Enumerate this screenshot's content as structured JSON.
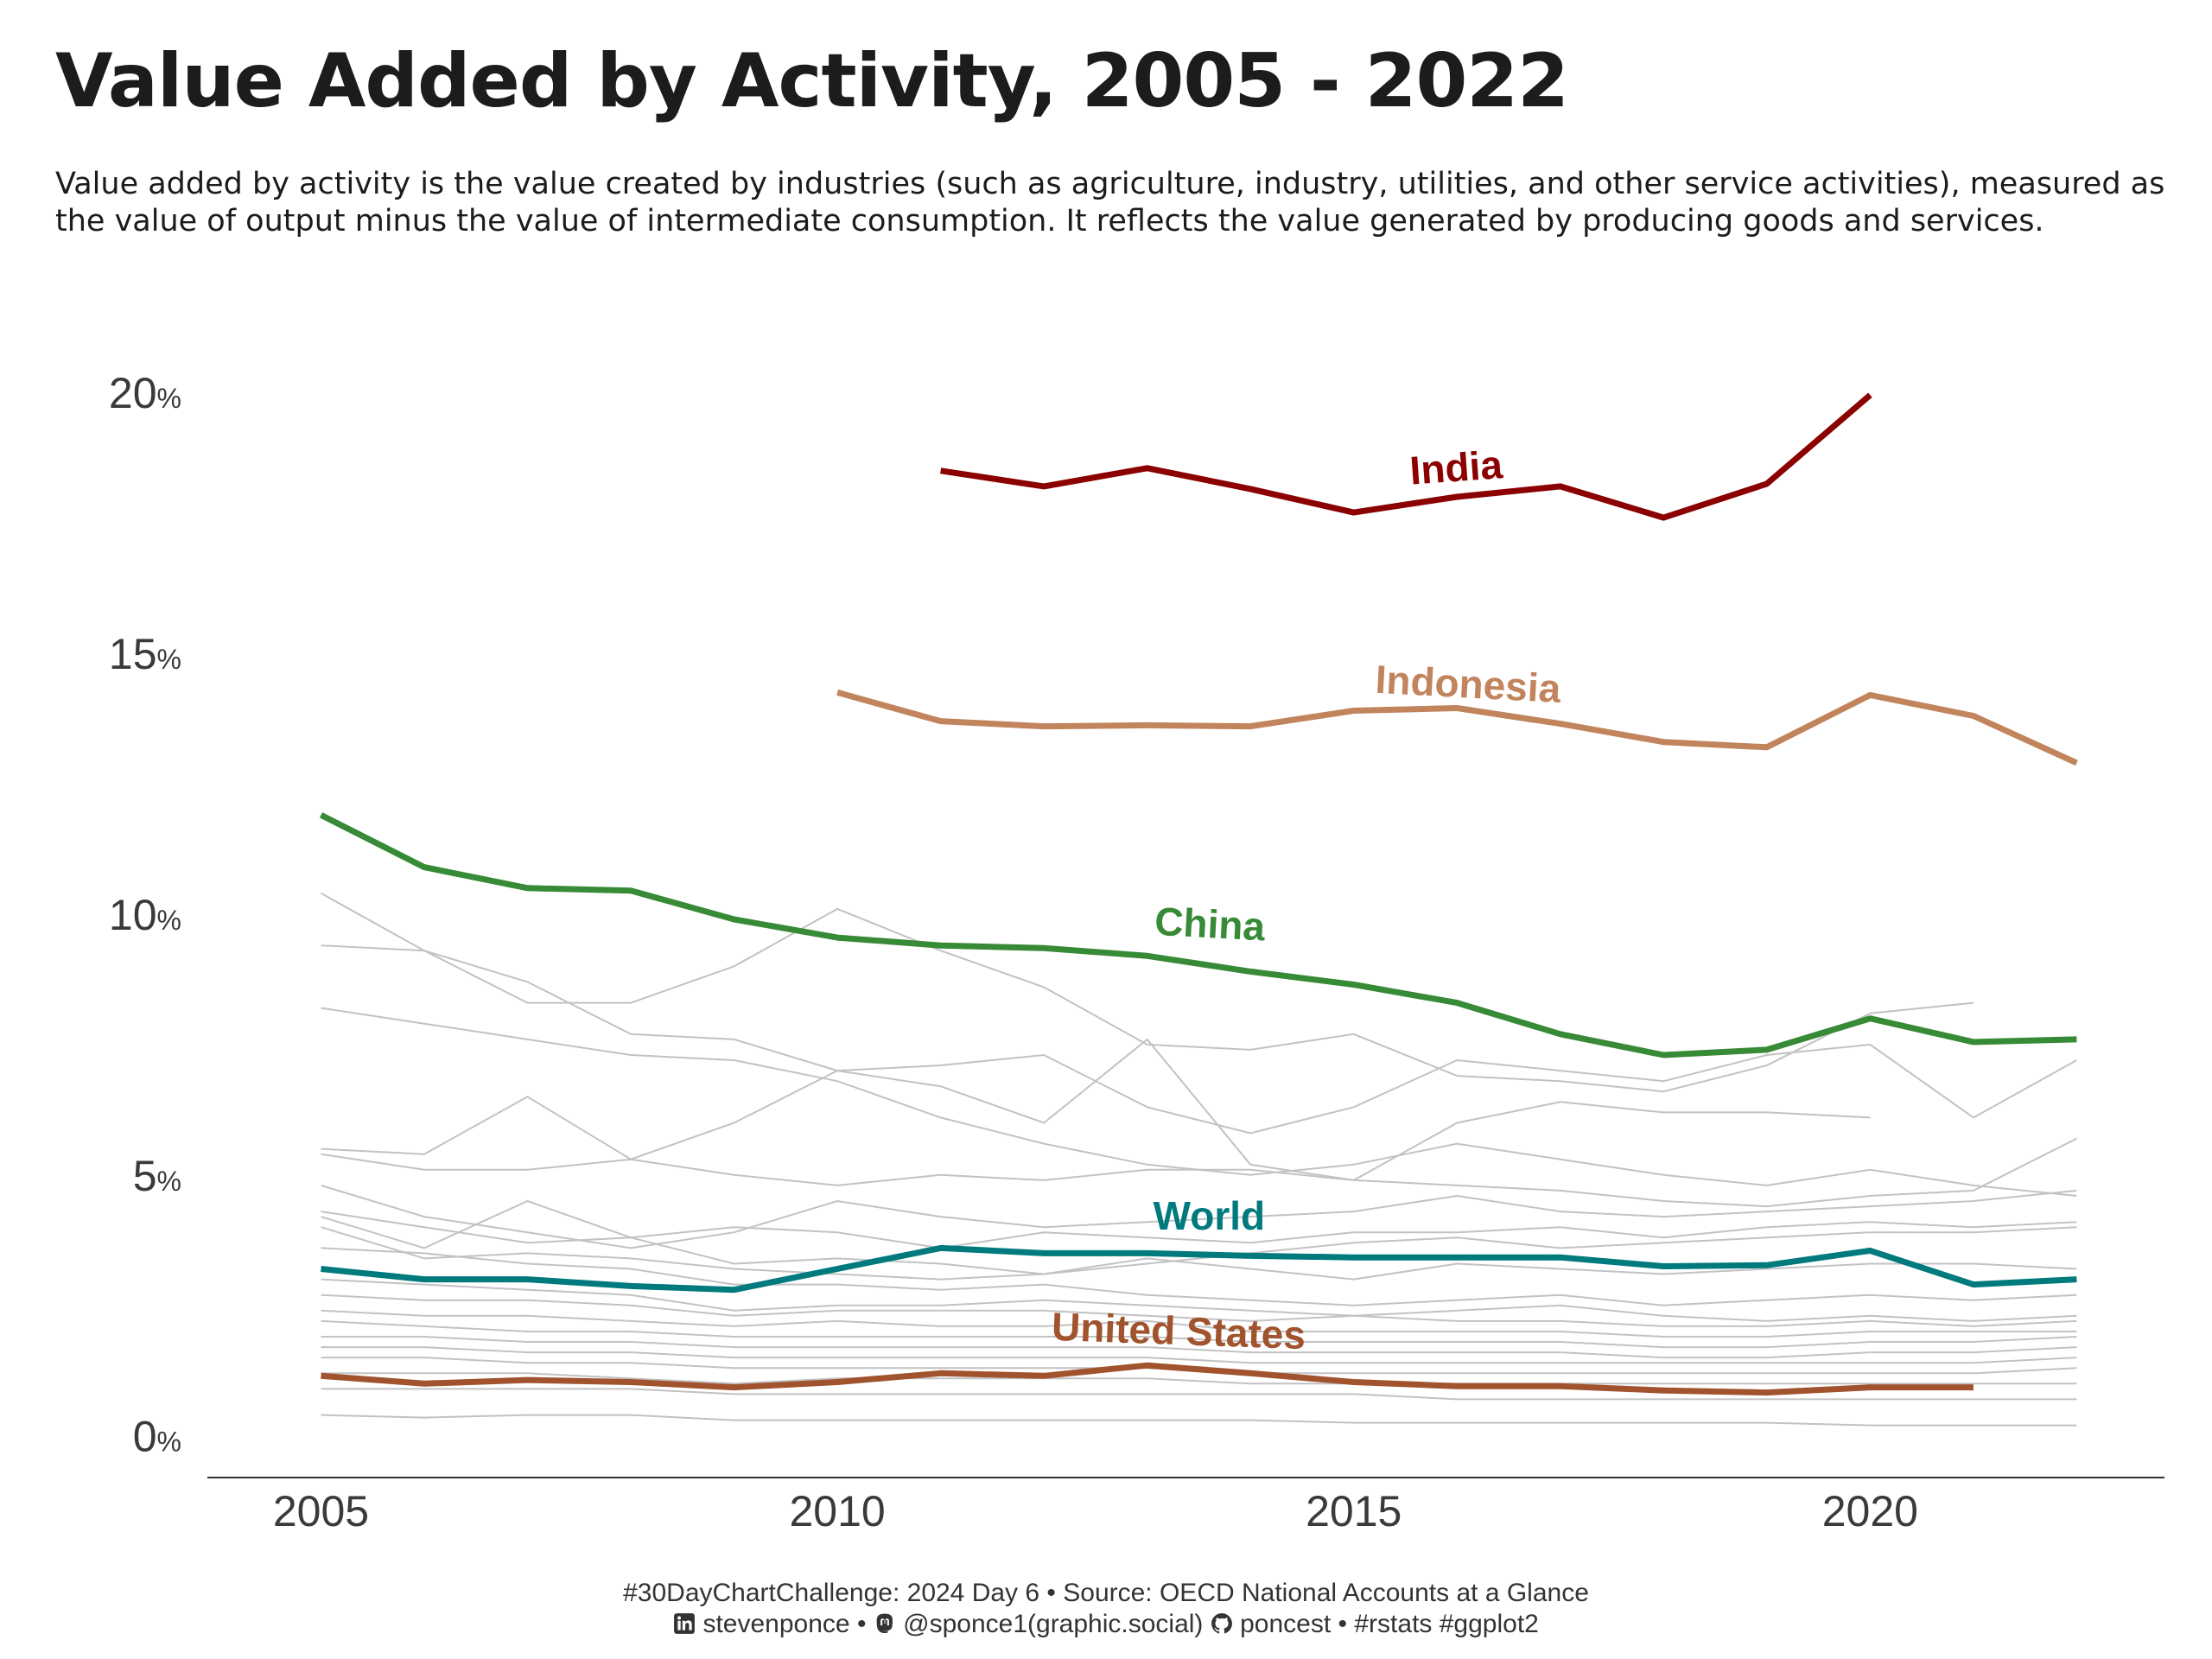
{
  "title": "Value Added by Activity, 2005 - 2022",
  "subtitle": "Value added by activity is the value created by industries (such as agriculture, industry, utilities, and other service activities), measured as the value of output minus the value of intermediate consumption. It reflects the value generated by producing goods and services.",
  "caption": {
    "line1": "#30DayChartChallenge: 2024 Day 6 • Source: OECD National Accounts at a Glance",
    "linkedin": "stevenponce",
    "sep1": " • ",
    "mastodon": "@sponce1(graphic.social)",
    "github": "poncest",
    "tags": " • #rstats #ggplot2",
    "icons": [
      "linkedin-icon",
      "mastodon-icon",
      "github-icon"
    ]
  },
  "chart_data": {
    "type": "line",
    "x_ticks": [
      2005,
      2010,
      2015,
      2020
    ],
    "y_ticks": [
      0,
      5,
      10,
      15,
      20
    ],
    "y_unit": "%",
    "xlim": [
      2003.9,
      2022.85
    ],
    "ylim": [
      -0.8,
      20.6
    ],
    "grid": false,
    "highlighted": [
      {
        "name": "India",
        "color": "#8b0000",
        "label_x": 2016,
        "label_y": 18.3,
        "label_angle": -4,
        "x": [
          2011,
          2012,
          2013,
          2014,
          2015,
          2016,
          2017,
          2018,
          2019,
          2020
        ],
        "y": [
          18.5,
          18.2,
          18.55,
          18.15,
          17.7,
          18.0,
          18.2,
          17.6,
          18.25,
          19.95
        ]
      },
      {
        "name": "Indonesia",
        "color": "#c1845c",
        "label_x": 2016.1,
        "label_y": 14.15,
        "label_angle": 3,
        "x": [
          2010,
          2011,
          2012,
          2013,
          2014,
          2015,
          2016,
          2017,
          2018,
          2019,
          2020,
          2021,
          2022
        ],
        "y": [
          14.25,
          13.7,
          13.6,
          13.62,
          13.6,
          13.9,
          13.95,
          13.65,
          13.3,
          13.2,
          14.2,
          13.8,
          12.9
        ]
      },
      {
        "name": "China",
        "color": "#378a36",
        "label_x": 2013.6,
        "label_y": 9.55,
        "label_angle": 3,
        "x": [
          2005,
          2006,
          2007,
          2008,
          2009,
          2010,
          2011,
          2012,
          2013,
          2014,
          2015,
          2016,
          2017,
          2018,
          2019,
          2020,
          2021,
          2022
        ],
        "y": [
          11.9,
          10.9,
          10.5,
          10.45,
          9.9,
          9.55,
          9.4,
          9.35,
          9.2,
          8.9,
          8.65,
          8.3,
          7.7,
          7.3,
          7.4,
          8.0,
          7.55,
          7.6
        ]
      },
      {
        "name": "World",
        "color": "#007a7d",
        "label_x": 2013.6,
        "label_y": 3.95,
        "label_angle": 0,
        "x": [
          2005,
          2006,
          2007,
          2008,
          2009,
          2010,
          2011,
          2012,
          2013,
          2014,
          2015,
          2016,
          2017,
          2018,
          2019,
          2020,
          2021,
          2022
        ],
        "y": [
          3.2,
          3.0,
          3.0,
          2.87,
          2.8,
          3.2,
          3.6,
          3.5,
          3.5,
          3.45,
          3.42,
          3.42,
          3.42,
          3.25,
          3.27,
          3.55,
          2.9,
          3.0
        ]
      },
      {
        "name": "United States",
        "color": "#a0532d",
        "label_x": 2013.3,
        "label_y": 1.75,
        "label_angle": 2,
        "x": [
          2005,
          2006,
          2007,
          2008,
          2009,
          2010,
          2011,
          2012,
          2013,
          2014,
          2015,
          2016,
          2017,
          2018,
          2019,
          2020,
          2021
        ],
        "y": [
          1.15,
          1.0,
          1.07,
          1.03,
          0.93,
          1.03,
          1.2,
          1.15,
          1.35,
          1.2,
          1.03,
          0.95,
          0.95,
          0.87,
          0.83,
          0.93,
          0.93
        ]
      }
    ],
    "background_series": [
      {
        "x": [
          2005,
          2006,
          2007,
          2008,
          2009,
          2010,
          2011,
          2012,
          2013,
          2014,
          2015,
          2016,
          2017,
          2018,
          2019,
          2020,
          2021,
          2022
        ],
        "y": [
          10.4,
          9.3,
          8.3,
          8.3,
          9.0,
          10.1,
          9.3,
          8.6,
          7.5,
          7.4,
          7.7,
          6.9,
          6.8,
          6.6,
          7.1,
          8.1,
          8.3,
          null
        ]
      },
      {
        "x": [
          2005,
          2006,
          2007,
          2008,
          2009,
          2010,
          2011,
          2012,
          2013,
          2014,
          2015,
          2016,
          2017,
          2018,
          2019,
          2020,
          2021,
          2022
        ],
        "y": [
          9.4,
          9.3,
          8.7,
          7.7,
          7.6,
          7.0,
          6.7,
          6.0,
          7.6,
          5.2,
          4.9,
          6.0,
          6.4,
          6.2,
          6.2,
          6.1,
          null,
          null
        ]
      },
      {
        "x": [
          2005,
          2006,
          2007,
          2008,
          2009,
          2010,
          2011,
          2012,
          2013,
          2014,
          2015,
          2016,
          2017,
          2018,
          2019,
          2020,
          2021,
          2022
        ],
        "y": [
          8.2,
          7.9,
          7.6,
          7.3,
          7.2,
          6.8,
          6.1,
          5.6,
          5.2,
          5.0,
          5.2,
          5.6,
          5.3,
          5.0,
          4.8,
          5.1,
          4.8,
          4.6
        ]
      },
      {
        "x": [
          2005,
          2006,
          2007,
          2008,
          2009,
          2010,
          2011,
          2012,
          2013,
          2014,
          2015,
          2016,
          2017,
          2018,
          2019,
          2020,
          2021,
          2022
        ],
        "y": [
          5.5,
          5.4,
          6.5,
          5.3,
          6.0,
          7.0,
          7.1,
          7.3,
          6.3,
          5.8,
          6.3,
          7.2,
          7.0,
          6.8,
          7.3,
          7.5,
          6.1,
          7.2
        ]
      },
      {
        "x": [
          2005,
          2006,
          2007,
          2008,
          2009,
          2010,
          2011,
          2012,
          2013,
          2014,
          2015,
          2016,
          2017,
          2018,
          2019,
          2020,
          2021,
          2022
        ],
        "y": [
          5.4,
          5.1,
          5.1,
          5.3,
          5.0,
          4.8,
          5.0,
          4.9,
          5.1,
          5.1,
          4.9,
          4.8,
          4.7,
          4.5,
          4.4,
          4.6,
          4.7,
          5.7
        ]
      },
      {
        "x": [
          2005,
          2006,
          2007,
          2008,
          2009,
          2010,
          2011,
          2012,
          2013,
          2014,
          2015,
          2016,
          2017,
          2018,
          2019,
          2020,
          2021,
          2022
        ],
        "y": [
          4.8,
          4.2,
          3.9,
          3.6,
          3.9,
          4.5,
          4.2,
          4.0,
          4.1,
          4.2,
          4.3,
          4.6,
          4.3,
          4.2,
          4.3,
          4.4,
          4.5,
          4.7
        ]
      },
      {
        "x": [
          2005,
          2006,
          2007,
          2008,
          2009,
          2010,
          2011,
          2012,
          2013,
          2014,
          2015,
          2016,
          2017,
          2018,
          2019,
          2020,
          2021,
          2022
        ],
        "y": [
          4.3,
          4.0,
          3.7,
          3.8,
          4.0,
          3.9,
          3.6,
          3.9,
          3.8,
          3.7,
          3.9,
          3.9,
          4.0,
          3.8,
          4.0,
          4.1,
          4.0,
          4.1
        ]
      },
      {
        "x": [
          2005,
          2006,
          2007,
          2008,
          2009,
          2010,
          2011,
          2012,
          2013,
          2014,
          2015,
          2016,
          2017,
          2018,
          2019,
          2020,
          2021,
          2022
        ],
        "y": [
          4.2,
          3.6,
          4.5,
          3.8,
          3.3,
          3.4,
          3.3,
          3.1,
          3.4,
          3.2,
          3.0,
          3.3,
          3.2,
          3.1,
          3.2,
          3.3,
          3.3,
          3.2
        ]
      },
      {
        "x": [
          2005,
          2006,
          2007,
          2008,
          2009,
          2010,
          2011,
          2012,
          2013,
          2014,
          2015,
          2016,
          2017,
          2018,
          2019,
          2020,
          2021,
          2022
        ],
        "y": [
          4.0,
          3.4,
          3.5,
          3.4,
          3.2,
          3.1,
          3.0,
          3.1,
          3.3,
          3.5,
          3.7,
          3.8,
          3.6,
          3.7,
          3.8,
          3.9,
          3.9,
          4.0
        ]
      },
      {
        "x": [
          2005,
          2006,
          2007,
          2008,
          2009,
          2010,
          2011,
          2012,
          2013,
          2014,
          2015,
          2016,
          2017,
          2018,
          2019,
          2020,
          2021,
          2022
        ],
        "y": [
          3.6,
          3.5,
          3.3,
          3.2,
          2.9,
          2.9,
          2.8,
          2.9,
          2.7,
          2.6,
          2.5,
          2.6,
          2.7,
          2.5,
          2.6,
          2.7,
          2.6,
          2.7
        ]
      },
      {
        "x": [
          2005,
          2006,
          2007,
          2008,
          2009,
          2010,
          2011,
          2012,
          2013,
          2014,
          2015,
          2016,
          2017,
          2018,
          2019,
          2020,
          2021,
          2022
        ],
        "y": [
          3.0,
          2.9,
          2.8,
          2.7,
          2.4,
          2.5,
          2.5,
          2.6,
          2.5,
          2.4,
          2.3,
          2.4,
          2.5,
          2.3,
          2.2,
          2.3,
          2.2,
          2.3
        ]
      },
      {
        "x": [
          2005,
          2006,
          2007,
          2008,
          2009,
          2010,
          2011,
          2012,
          2013,
          2014,
          2015,
          2016,
          2017,
          2018,
          2019,
          2020,
          2021,
          2022
        ],
        "y": [
          2.7,
          2.6,
          2.6,
          2.5,
          2.3,
          2.4,
          2.4,
          2.4,
          2.3,
          2.2,
          2.3,
          2.2,
          2.2,
          2.1,
          2.1,
          2.2,
          2.1,
          2.2
        ]
      },
      {
        "x": [
          2005,
          2006,
          2007,
          2008,
          2009,
          2010,
          2011,
          2012,
          2013,
          2014,
          2015,
          2016,
          2017,
          2018,
          2019,
          2020,
          2021,
          2022
        ],
        "y": [
          2.4,
          2.3,
          2.3,
          2.2,
          2.1,
          2.2,
          2.1,
          2.1,
          2.2,
          2.0,
          2.0,
          2.0,
          2.0,
          1.9,
          1.9,
          2.0,
          2.0,
          2.0
        ]
      },
      {
        "x": [
          2005,
          2006,
          2007,
          2008,
          2009,
          2010,
          2011,
          2012,
          2013,
          2014,
          2015,
          2016,
          2017,
          2018,
          2019,
          2020,
          2021,
          2022
        ],
        "y": [
          2.2,
          2.1,
          2.0,
          2.0,
          1.9,
          1.9,
          1.9,
          1.9,
          1.9,
          1.8,
          1.8,
          1.8,
          1.8,
          1.7,
          1.7,
          1.8,
          1.8,
          1.9
        ]
      },
      {
        "x": [
          2005,
          2006,
          2007,
          2008,
          2009,
          2010,
          2011,
          2012,
          2013,
          2014,
          2015,
          2016,
          2017,
          2018,
          2019,
          2020,
          2021,
          2022
        ],
        "y": [
          1.9,
          1.9,
          1.8,
          1.8,
          1.7,
          1.7,
          1.7,
          1.7,
          1.7,
          1.6,
          1.6,
          1.6,
          1.6,
          1.5,
          1.5,
          1.6,
          1.6,
          1.7
        ]
      },
      {
        "x": [
          2005,
          2006,
          2007,
          2008,
          2009,
          2010,
          2011,
          2012,
          2013,
          2014,
          2015,
          2016,
          2017,
          2018,
          2019,
          2020,
          2021,
          2022
        ],
        "y": [
          1.7,
          1.7,
          1.6,
          1.6,
          1.5,
          1.5,
          1.5,
          1.5,
          1.5,
          1.4,
          1.4,
          1.4,
          1.4,
          1.4,
          1.4,
          1.4,
          1.4,
          1.5
        ]
      },
      {
        "x": [
          2005,
          2006,
          2007,
          2008,
          2009,
          2010,
          2011,
          2012,
          2013,
          2014,
          2015,
          2016,
          2017,
          2018,
          2019,
          2020,
          2021,
          2022
        ],
        "y": [
          1.5,
          1.5,
          1.4,
          1.4,
          1.3,
          1.3,
          1.3,
          1.3,
          1.3,
          1.2,
          1.2,
          1.2,
          1.2,
          1.2,
          1.2,
          1.2,
          1.2,
          1.3
        ]
      },
      {
        "x": [
          2005,
          2006,
          2007,
          2008,
          2009,
          2010,
          2011,
          2012,
          2013,
          2014,
          2015,
          2016,
          2017,
          2018,
          2019,
          2020,
          2021,
          2022
        ],
        "y": [
          1.2,
          1.2,
          1.2,
          1.1,
          1.0,
          1.1,
          1.1,
          1.1,
          1.1,
          1.0,
          1.0,
          1.0,
          1.0,
          1.0,
          1.0,
          1.0,
          1.0,
          1.0
        ]
      },
      {
        "x": [
          2005,
          2006,
          2007,
          2008,
          2009,
          2010,
          2011,
          2012,
          2013,
          2014,
          2015,
          2016,
          2017,
          2018,
          2019,
          2020,
          2021,
          2022
        ],
        "y": [
          0.9,
          0.9,
          0.9,
          0.9,
          0.8,
          0.8,
          0.8,
          0.8,
          0.8,
          0.8,
          0.8,
          0.7,
          0.7,
          0.7,
          0.7,
          0.7,
          0.7,
          0.7
        ]
      },
      {
        "x": [
          2005,
          2006,
          2007,
          2008,
          2009,
          2010,
          2011,
          2012,
          2013,
          2014,
          2015,
          2016,
          2017,
          2018,
          2019,
          2020,
          2021,
          2022
        ],
        "y": [
          0.4,
          0.35,
          0.4,
          0.4,
          0.3,
          0.3,
          0.3,
          0.3,
          0.3,
          0.3,
          0.25,
          0.25,
          0.25,
          0.25,
          0.25,
          0.2,
          0.2,
          0.2
        ]
      }
    ]
  },
  "colors": {
    "background_line": "#c2c2c5",
    "axis_text": "#3a3a3a",
    "axis_line": "#333333"
  }
}
